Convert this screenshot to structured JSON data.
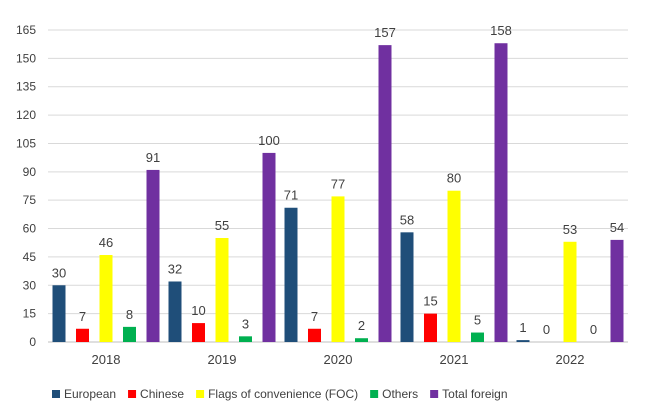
{
  "chart_data": {
    "type": "bar",
    "categories": [
      "2018",
      "2019",
      "2020",
      "2021",
      "2022"
    ],
    "series": [
      {
        "name": "European",
        "color": "#1f4e79",
        "values": [
          30,
          32,
          71,
          58,
          1
        ]
      },
      {
        "name": "Chinese",
        "color": "#ff0000",
        "values": [
          7,
          10,
          7,
          15,
          0
        ]
      },
      {
        "name": "Flags of convenience (FOC)",
        "color": "#ffff00",
        "values": [
          46,
          55,
          77,
          80,
          53
        ]
      },
      {
        "name": "Others",
        "color": "#00b050",
        "values": [
          8,
          3,
          2,
          5,
          0
        ]
      },
      {
        "name": "Total foreign",
        "color": "#7030a0",
        "values": [
          91,
          100,
          157,
          158,
          54
        ]
      }
    ],
    "yticks": [
      0,
      15,
      30,
      45,
      60,
      75,
      90,
      105,
      120,
      135,
      150,
      165
    ],
    "ylim": [
      0,
      165
    ],
    "grid": true,
    "legend": "bottom"
  }
}
